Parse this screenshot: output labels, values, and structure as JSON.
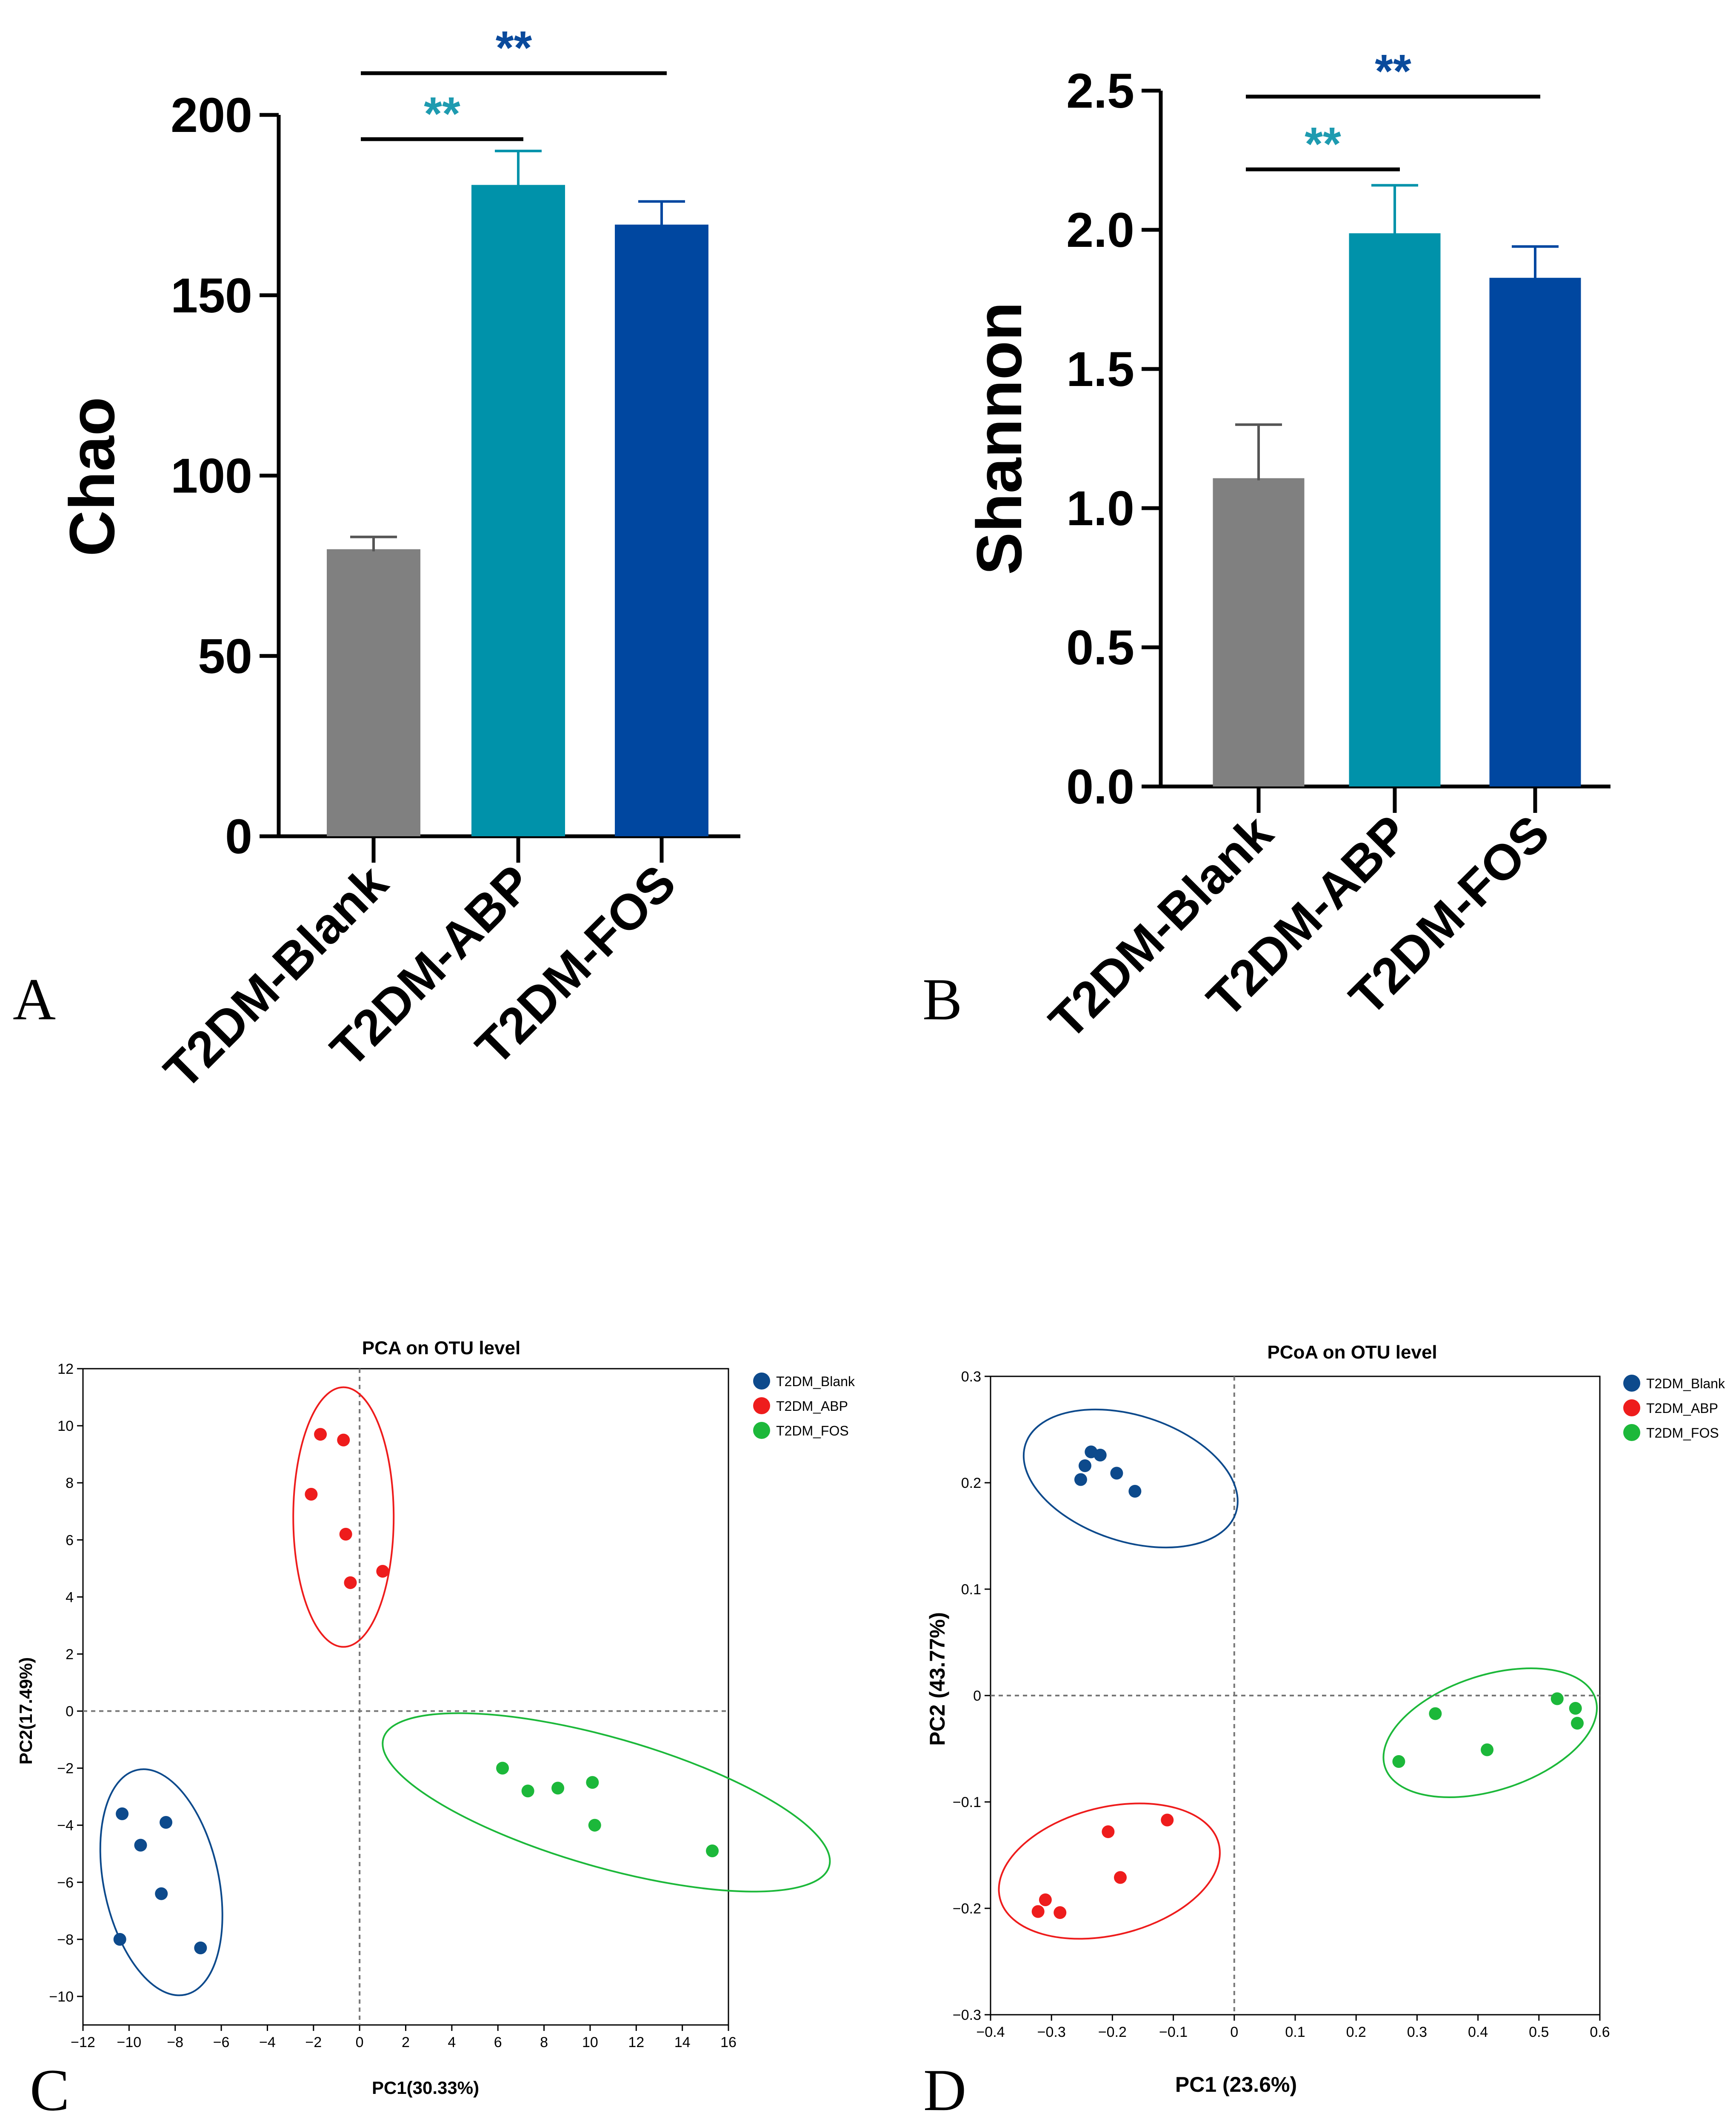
{
  "panel_letters": {
    "a": "A",
    "b": "B",
    "c": "C",
    "d": "D"
  },
  "colors": {
    "blank_bar": "#808080",
    "abp_bar": "#0092aa",
    "fos_bar": "#0047a0",
    "sig_abp": "#1e9bb0",
    "sig_fos": "#0a4a9c",
    "pt_blank": "#0d4a8c",
    "pt_abp": "#ee1c1c",
    "pt_fos": "#1cb83a"
  },
  "chart_data": [
    {
      "id": "A",
      "type": "bar",
      "ylabel": "Chao",
      "categories": [
        "T2DM-Blank",
        "T2DM-ABP",
        "T2DM-FOS"
      ],
      "values": [
        79,
        180,
        169
      ],
      "errors": [
        4,
        10,
        7
      ],
      "ylim": [
        0,
        200
      ],
      "yticks": [
        "0",
        "50",
        "100",
        "150",
        "200"
      ],
      "significance": [
        {
          "from": "T2DM-Blank",
          "to": "T2DM-ABP",
          "label": "**"
        },
        {
          "from": "T2DM-Blank",
          "to": "T2DM-FOS",
          "label": "**"
        }
      ]
    },
    {
      "id": "B",
      "type": "bar",
      "ylabel": "Shannon",
      "categories": [
        "T2DM-Blank",
        "T2DM-ABP",
        "T2DM-FOS"
      ],
      "values": [
        1.1,
        1.98,
        1.82
      ],
      "errors": [
        0.2,
        0.18,
        0.12
      ],
      "ylim": [
        0,
        2.5
      ],
      "yticks": [
        "0.0",
        "0.5",
        "1.0",
        "1.5",
        "2.0",
        "2.5"
      ],
      "significance": [
        {
          "from": "T2DM-Blank",
          "to": "T2DM-ABP",
          "label": "**"
        },
        {
          "from": "T2DM-Blank",
          "to": "T2DM-FOS",
          "label": "**"
        }
      ]
    },
    {
      "id": "C",
      "type": "scatter",
      "title": "PCA on OTU level",
      "xlabel": "PC1(30.33%)",
      "ylabel": "PC2(17.49%)",
      "xlim": [
        -12,
        16
      ],
      "ylim": [
        -11,
        12
      ],
      "xticks": [
        "−12",
        "−10",
        "−8",
        "−6",
        "−4",
        "−2",
        "0",
        "2",
        "4",
        "6",
        "8",
        "10",
        "12",
        "14",
        "16"
      ],
      "yticks": [
        "−10",
        "−8",
        "−6",
        "−4",
        "−2",
        "0",
        "2",
        "4",
        "6",
        "8",
        "10",
        "12"
      ],
      "legend": [
        "T2DM_Blank",
        "T2DM_ABP",
        "T2DM_FOS"
      ],
      "series": [
        {
          "name": "T2DM_Blank",
          "points": [
            [
              -10.3,
              -3.6
            ],
            [
              -9.5,
              -4.7
            ],
            [
              -8.4,
              -3.9
            ],
            [
              -8.6,
              -6.4
            ],
            [
              -10.4,
              -8.0
            ],
            [
              -6.9,
              -8.3
            ]
          ]
        },
        {
          "name": "T2DM_ABP",
          "points": [
            [
              -1.7,
              9.7
            ],
            [
              -0.7,
              9.5
            ],
            [
              -2.1,
              7.6
            ],
            [
              -0.6,
              6.2
            ],
            [
              -0.4,
              4.5
            ],
            [
              1.0,
              4.9
            ]
          ]
        },
        {
          "name": "T2DM_FOS",
          "points": [
            [
              6.2,
              -2.0
            ],
            [
              7.3,
              -2.8
            ],
            [
              8.6,
              -2.7
            ],
            [
              10.1,
              -2.5
            ],
            [
              10.2,
              -4.0
            ],
            [
              15.3,
              -4.9
            ]
          ]
        }
      ]
    },
    {
      "id": "D",
      "type": "scatter",
      "title": "PCoA on OTU level",
      "xlabel": "PC1 (23.6%)",
      "ylabel": "PC2 (43.77%)",
      "xlim": [
        -0.4,
        0.6
      ],
      "ylim": [
        -0.3,
        0.3
      ],
      "xticks": [
        "−0.4",
        "−0.3",
        "−0.2",
        "−0.1",
        "0",
        "0.1",
        "0.2",
        "0.3",
        "0.4",
        "0.5",
        "0.6"
      ],
      "yticks": [
        "−0.3",
        "−0.2",
        "−0.1",
        "0",
        "0.1",
        "0.2",
        "0.3"
      ],
      "legend": [
        "T2DM_Blank",
        "T2DM_ABP",
        "T2DM_FOS"
      ],
      "series": [
        {
          "name": "T2DM_Blank",
          "points": [
            [
              -0.235,
              0.229
            ],
            [
              -0.22,
              0.226
            ],
            [
              -0.245,
              0.216
            ],
            [
              -0.252,
              0.203
            ],
            [
              -0.193,
              0.209
            ],
            [
              -0.163,
              0.192
            ]
          ]
        },
        {
          "name": "T2DM_ABP",
          "points": [
            [
              -0.11,
              -0.117
            ],
            [
              -0.207,
              -0.128
            ],
            [
              -0.187,
              -0.171
            ],
            [
              -0.31,
              -0.192
            ],
            [
              -0.322,
              -0.203
            ],
            [
              -0.286,
              -0.204
            ]
          ]
        },
        {
          "name": "T2DM_FOS",
          "points": [
            [
              0.53,
              -0.003
            ],
            [
              0.56,
              -0.012
            ],
            [
              0.563,
              -0.026
            ],
            [
              0.33,
              -0.017
            ],
            [
              0.415,
              -0.051
            ],
            [
              0.27,
              -0.062
            ]
          ]
        }
      ]
    }
  ]
}
